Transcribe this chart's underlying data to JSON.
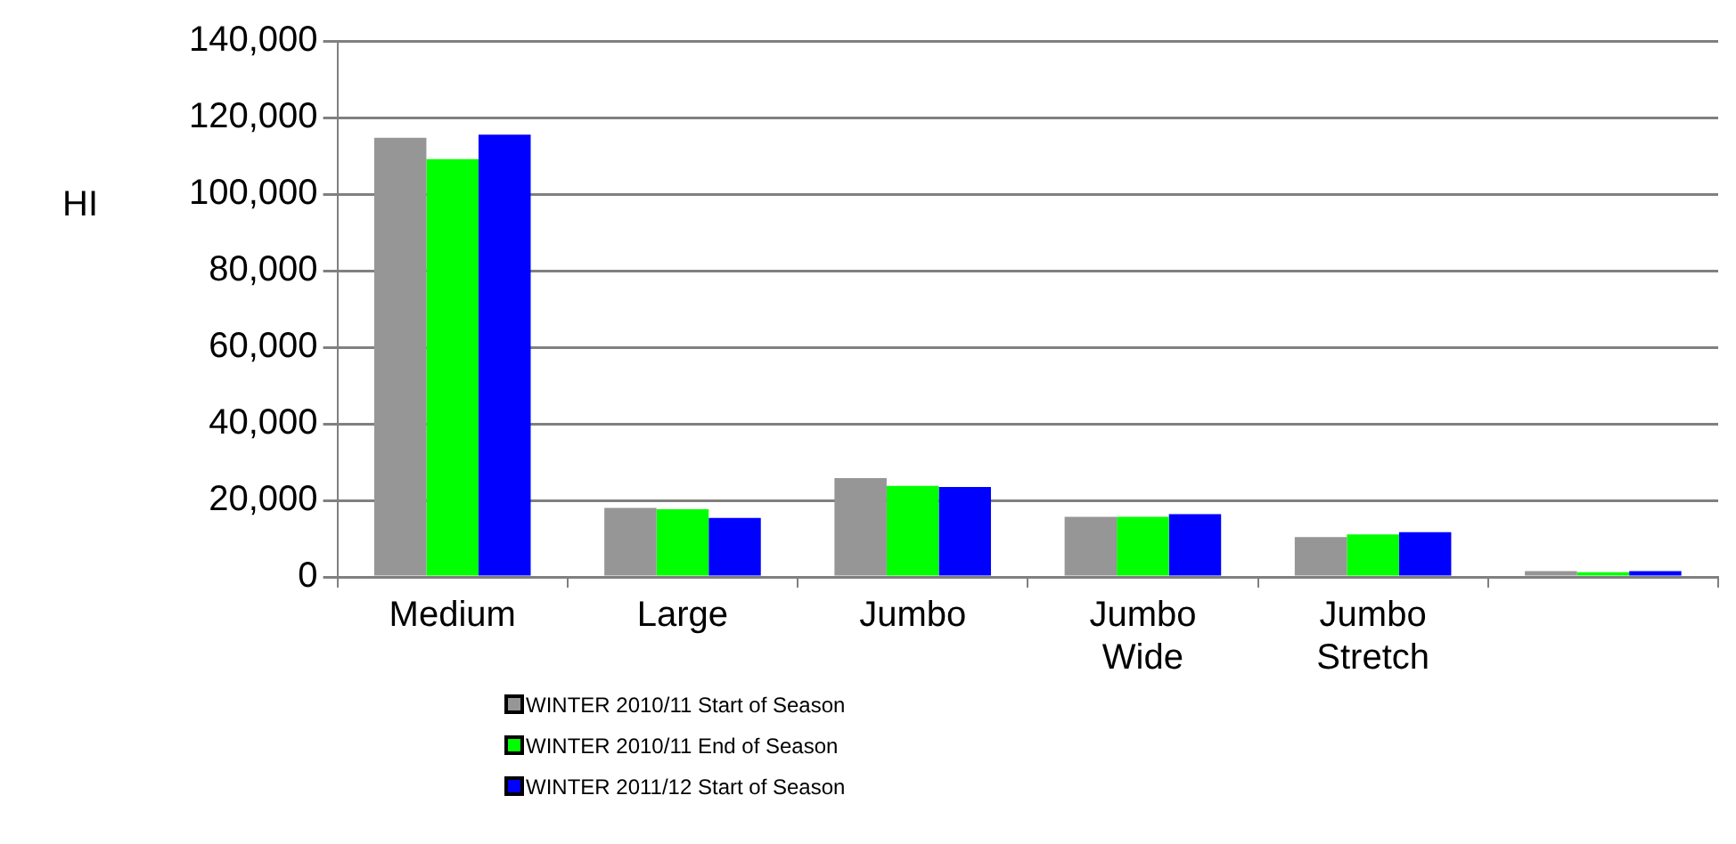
{
  "chart_data": {
    "type": "bar",
    "ylabel": "HI",
    "categories": [
      "Medium",
      "Large",
      "Jumbo",
      "Jumbo Wide",
      "Jumbo Stretch",
      null
    ],
    "series": [
      {
        "name": "WINTER 2010/11 Start of Season",
        "color": "#969696",
        "values": [
          114700,
          18000,
          25800,
          15700,
          10400,
          1500
        ]
      },
      {
        "name": "WINTER 2010/11 End of Season",
        "color": "#00ff00",
        "values": [
          109100,
          17700,
          23800,
          15700,
          11100,
          1200
        ]
      },
      {
        "name": "WINTER 2011/12 Start of Season",
        "color": "#0000ff",
        "values": [
          115500,
          15400,
          23500,
          16400,
          11700,
          1500
        ]
      }
    ],
    "ylim": [
      0,
      140000
    ],
    "yticks": [
      0,
      {
        "value": 20000,
        "label": "20,000"
      },
      {
        "value": 40000,
        "label": "40,000"
      },
      {
        "value": 60000,
        "label": "60,000"
      },
      {
        "value": 80000,
        "label": "80,000"
      },
      {
        "value": 100000,
        "label": "100,000"
      },
      {
        "value": 120000,
        "label": "120,000"
      },
      {
        "value": 140000,
        "label": "140,000"
      }
    ],
    "grid": "y",
    "legend": "bottom"
  }
}
